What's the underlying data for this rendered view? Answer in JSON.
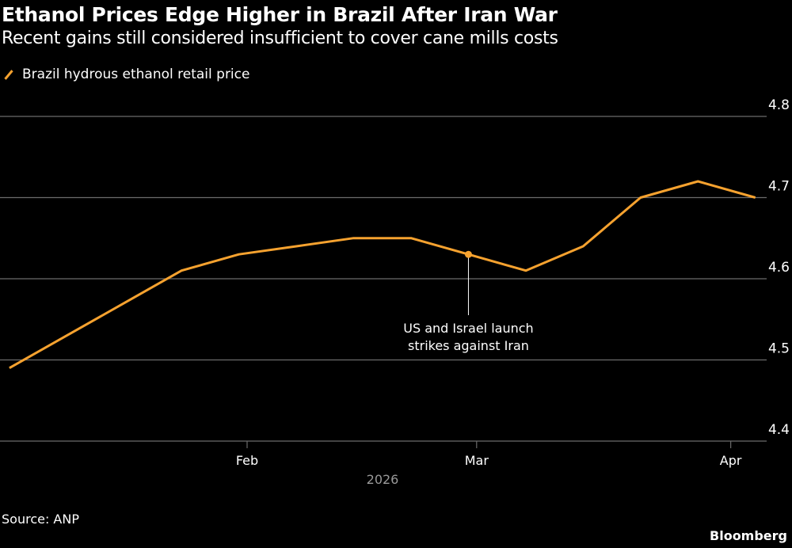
{
  "title": "Ethanol Prices Edge Higher in Brazil After Iran War",
  "subtitle": "Recent gains still considered insufficient to cover cane mills costs",
  "source": "Source: ANP",
  "brand": "Bloomberg",
  "chart_data": {
    "type": "line",
    "title": "Ethanol Prices Edge Higher in Brazil After Iran War",
    "xlabel": "2026",
    "ylabel": "",
    "ylim": [
      4.4,
      4.8
    ],
    "yticks": [
      "4.4",
      "4.5",
      "4.6",
      "4.7",
      "4.8"
    ],
    "xticks": [
      {
        "label": "Feb",
        "date": "2026-02-01"
      },
      {
        "label": "Mar",
        "date": "2026-03-01"
      },
      {
        "label": "Apr",
        "date": "2026-04-01"
      }
    ],
    "grid": true,
    "legend_position": "top-left",
    "series": [
      {
        "name": "Brazil hydrous ethanol retail price",
        "color": "#f6a22f",
        "x": [
          "2026-01-03",
          "2026-01-10",
          "2026-01-17",
          "2026-01-24",
          "2026-01-31",
          "2026-02-07",
          "2026-02-14",
          "2026-02-21",
          "2026-02-28",
          "2026-03-07",
          "2026-03-14",
          "2026-03-21",
          "2026-03-28",
          "2026-04-04"
        ],
        "values": [
          4.49,
          4.53,
          4.57,
          4.61,
          4.63,
          4.64,
          4.65,
          4.65,
          4.63,
          4.61,
          4.64,
          4.7,
          4.72,
          4.7
        ]
      }
    ],
    "annotations": [
      {
        "date": "2026-02-28",
        "value": 4.63,
        "lines": [
          "US and Israel launch",
          "strikes against Iran"
        ]
      }
    ]
  }
}
